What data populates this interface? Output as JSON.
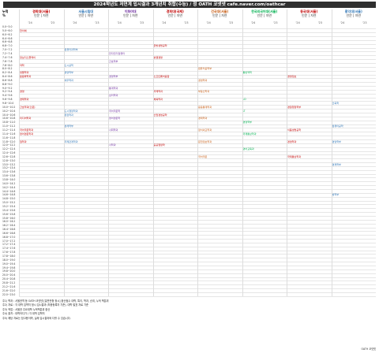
{
  "title": "2024학년도 저연계 입시결과 3개년치 취합(수능) / 정 OATH 코넷넷 cafe.naver.com/oathcar",
  "corner": {
    "top": "누적",
    "sub": "%"
  },
  "universities": [
    {
      "name": "경희대(서울)",
      "sub": "인문 | 자연",
      "color": "#c00000"
    },
    {
      "name": "서울시립대",
      "sub": "인문 | 자연",
      "color": "#2e75b6"
    },
    {
      "name": "이화여대",
      "sub": "인문 | 자연",
      "color": "#7030a0"
    },
    {
      "name": "경희대(국제)",
      "sub": "인문 | 자연",
      "color": "#c00000"
    },
    {
      "name": "건국대(서울)",
      "sub": "인문 | 자연",
      "color": "#c55a11"
    },
    {
      "name": "한국외국어대(서울)",
      "sub": "인문 | 자연",
      "color": "#00b050"
    },
    {
      "name": "동국대(서울)",
      "sub": "인문 | 자연",
      "color": "#c00000"
    },
    {
      "name": "홍익대(서울)",
      "sub": "인문 | 자연",
      "color": "#2e75b6"
    }
  ],
  "subcols": [
    "'24",
    "'23",
    "'24",
    "'23",
    "'24",
    "'23",
    "'24",
    "'23",
    "'24",
    "'23",
    "'24",
    "'23",
    "'24",
    "'23",
    "'24",
    "'23"
  ],
  "rows": [
    "0.0~5.0",
    "5.0~6.0",
    "6.0~6.2",
    "6.4~6.6",
    "6.6~6.8",
    "6.8~7.0",
    "7.0~7.2",
    "7.2~7.4",
    "7.4~7.6",
    "7.6~7.8",
    "7.8~8.0",
    "8.0~8.2",
    "8.2~8.4",
    "8.4~8.6",
    "8.6~8.8",
    "8.8~9.0",
    "9.0~9.2",
    "9.2~9.4",
    "9.4~9.6",
    "9.6~9.8",
    "9.8~10.0",
    "10.0~10.2",
    "10.2~10.4",
    "10.4~10.6",
    "10.6~10.8",
    "10.8~11.0",
    "11.0~11.2",
    "11.2~11.4",
    "11.4~11.6",
    "11.6~11.8",
    "11.8~12.0",
    "12.0~12.2",
    "12.2~12.4",
    "12.4~12.6",
    "12.6~12.8",
    "12.8~13.0",
    "13.0~13.2",
    "13.2~13.4",
    "13.4~13.6",
    "13.6~13.8",
    "13.8~14.0",
    "14.0~14.2",
    "14.2~14.4",
    "14.4~14.6",
    "14.6~14.8",
    "14.8~15.0",
    "15.0~15.2",
    "15.2~15.4",
    "15.4~15.6",
    "15.6~15.8",
    "15.8~16.0",
    "16.0~16.2",
    "16.2~16.4",
    "16.4~16.6",
    "16.6~16.8",
    "16.8~17.0",
    "17.0~17.2",
    "17.2~17.4",
    "17.4~17.6",
    "17.6~17.8",
    "17.8~18.0",
    "18.0~19.0",
    "19.0~19.4",
    "19.4~19.8",
    "19.8~20.0",
    "20.0~20.4",
    "20.4~20.8",
    "20.8~21.2",
    "21.2~21.6",
    "21.6~22.0",
    "22.0~23.0"
  ],
  "entries": [
    {
      "t": "한의예",
      "c": 0,
      "r": 1,
      "color": "#c00000"
    },
    {
      "t": "정보디스플레이",
      "c": 0,
      "r": 8,
      "color": "#c00000"
    },
    {
      "t": "약학",
      "c": 0,
      "r": 10,
      "color": "#c00000"
    },
    {
      "t": "생물학과",
      "c": 0,
      "r": 12,
      "color": "#c00000"
    },
    {
      "t": "응용화학과",
      "c": 0,
      "r": 13,
      "color": "#c00000"
    },
    {
      "t": "경영",
      "c": 0,
      "r": 17,
      "color": "#c00000"
    },
    {
      "t": "경제학과",
      "c": 0,
      "r": 19,
      "color": "#c00000"
    },
    {
      "t": "간호학과(인문)",
      "c": 0,
      "r": 21,
      "color": "#c00000"
    },
    {
      "t": "미디어학과",
      "c": 0,
      "r": 24,
      "color": "#c00000"
    },
    {
      "t": "국어국문학과",
      "c": 0,
      "r": 27,
      "color": "#c00000"
    },
    {
      "t": "영어영문학과",
      "c": 0,
      "r": 28,
      "color": "#c00000"
    },
    {
      "t": "철학과",
      "c": 0,
      "r": 30,
      "color": "#c00000"
    },
    {
      "t": "컴퓨터과학부",
      "c": 2,
      "r": 6,
      "color": "#2e75b6"
    },
    {
      "t": "도시공학",
      "c": 2,
      "r": 10,
      "color": "#2e75b6"
    },
    {
      "t": "경영학부",
      "c": 2,
      "r": 12,
      "color": "#2e75b6"
    },
    {
      "t": "세무학과",
      "c": 2,
      "r": 14,
      "color": "#2e75b6"
    },
    {
      "t": "도시행정학과",
      "c": 2,
      "r": 22,
      "color": "#2e75b6"
    },
    {
      "t": "행정학과",
      "c": 2,
      "r": 23,
      "color": "#2e75b6"
    },
    {
      "t": "경제학부",
      "c": 2,
      "r": 26,
      "color": "#2e75b6"
    },
    {
      "t": "국제관계학과",
      "c": 2,
      "r": 30,
      "color": "#2e75b6"
    },
    {
      "t": "전자전기컴퓨터",
      "c": 4,
      "r": 7,
      "color": "#7030a0"
    },
    {
      "t": "간호학부",
      "c": 4,
      "r": 9,
      "color": "#7030a0"
    },
    {
      "t": "경영학부",
      "c": 4,
      "r": 13,
      "color": "#7030a0"
    },
    {
      "t": "통계학과",
      "c": 4,
      "r": 16,
      "color": "#7030a0"
    },
    {
      "t": "심리학과",
      "c": 4,
      "r": 18,
      "color": "#7030a0"
    },
    {
      "t": "국어국문학",
      "c": 4,
      "r": 22,
      "color": "#7030a0"
    },
    {
      "t": "영어영문학",
      "c": 4,
      "r": 24,
      "color": "#7030a0"
    },
    {
      "t": "사회학과",
      "c": 4,
      "r": 27,
      "color": "#7030a0"
    },
    {
      "t": "사학과",
      "c": 4,
      "r": 31,
      "color": "#7030a0"
    },
    {
      "t": "한방생명공학",
      "c": 6,
      "r": 5,
      "color": "#c00000"
    },
    {
      "t": "호텔경영",
      "c": 6,
      "r": 8,
      "color": "#c00000"
    },
    {
      "t": "소프트웨어융합",
      "c": 6,
      "r": 13,
      "color": "#c00000"
    },
    {
      "t": "국제학과",
      "c": 6,
      "r": 17,
      "color": "#c00000"
    },
    {
      "t": "체육학과",
      "c": 6,
      "r": 19,
      "color": "#c00000"
    },
    {
      "t": "산업경영공학",
      "c": 6,
      "r": 23,
      "color": "#c00000"
    },
    {
      "t": "공공행정학",
      "c": 6,
      "r": 31,
      "color": "#c00000"
    },
    {
      "t": "컴퓨터공학부",
      "c": 8,
      "r": 11,
      "color": "#c55a11"
    },
    {
      "t": "경영학과",
      "c": 8,
      "r": 14,
      "color": "#c55a11"
    },
    {
      "t": "부동산학과",
      "c": 8,
      "r": 17,
      "color": "#c55a11"
    },
    {
      "t": "응용통계학과",
      "c": 8,
      "r": 21,
      "color": "#c55a11"
    },
    {
      "t": "경제학과",
      "c": 8,
      "r": 24,
      "color": "#c55a11"
    },
    {
      "t": "정치외교학과",
      "c": 8,
      "r": 27,
      "color": "#c55a11"
    },
    {
      "t": "문헌정보학과",
      "c": 8,
      "r": 30,
      "color": "#c55a11"
    },
    {
      "t": "국어국문",
      "c": 8,
      "r": 34,
      "color": "#c55a11"
    },
    {
      "t": "통번역학",
      "c": 10,
      "r": 12,
      "color": "#00b050"
    },
    {
      "t": "LD",
      "c": 10,
      "r": 19,
      "color": "#00b050"
    },
    {
      "t": "LT",
      "c": 10,
      "r": 22,
      "color": "#00b050"
    },
    {
      "t": "경영학부",
      "c": 10,
      "r": 25,
      "color": "#00b050"
    },
    {
      "t": "국제통상학과",
      "c": 10,
      "r": 28,
      "color": "#00b050"
    },
    {
      "t": "영어교육과",
      "c": 10,
      "r": 32,
      "color": "#00b050"
    },
    {
      "t": "경영정보",
      "c": 12,
      "r": 13,
      "color": "#c00000"
    },
    {
      "t": "경찰행정학부",
      "c": 12,
      "r": 21,
      "color": "#c00000"
    },
    {
      "t": "식품생명공학",
      "c": 12,
      "r": 27,
      "color": "#c00000"
    },
    {
      "t": "경영학과",
      "c": 12,
      "r": 30,
      "color": "#c00000"
    },
    {
      "t": "국제통상학과",
      "c": 12,
      "r": 34,
      "color": "#c00000"
    },
    {
      "t": "건축학",
      "c": 14,
      "r": 20,
      "color": "#2e75b6"
    },
    {
      "t": "컴퓨터공학",
      "c": 14,
      "r": 26,
      "color": "#2e75b6"
    },
    {
      "t": "경영학부",
      "c": 14,
      "r": 30,
      "color": "#2e75b6"
    },
    {
      "t": "경제학부",
      "c": 14,
      "r": 36,
      "color": "#2e75b6"
    },
    {
      "t": "법학부",
      "c": 14,
      "r": 44,
      "color": "#2e75b6"
    }
  ],
  "notes": [
    "주1) 학과 : 서울권역 등 OATH 코넷넷 [일반전형 정시] 환산점수 대학, 특이, 학과, 순위, 누적 백분위",
    "주2) 자료 : 각 대학 입학처 정시 입시결과 (최종등록자 기준), 대학 발표 자료 기준",
    "주3) 작업 : 서울권 주요대학 누적백분위 환산",
    "주4) 출처 : 대학어디가 / 각 대학 입학처",
    "주5) 해당 자료는 참고용이며, 실제 입시결과와 다를 수 있습니다."
  ],
  "footer": "OATH 코넷넷"
}
